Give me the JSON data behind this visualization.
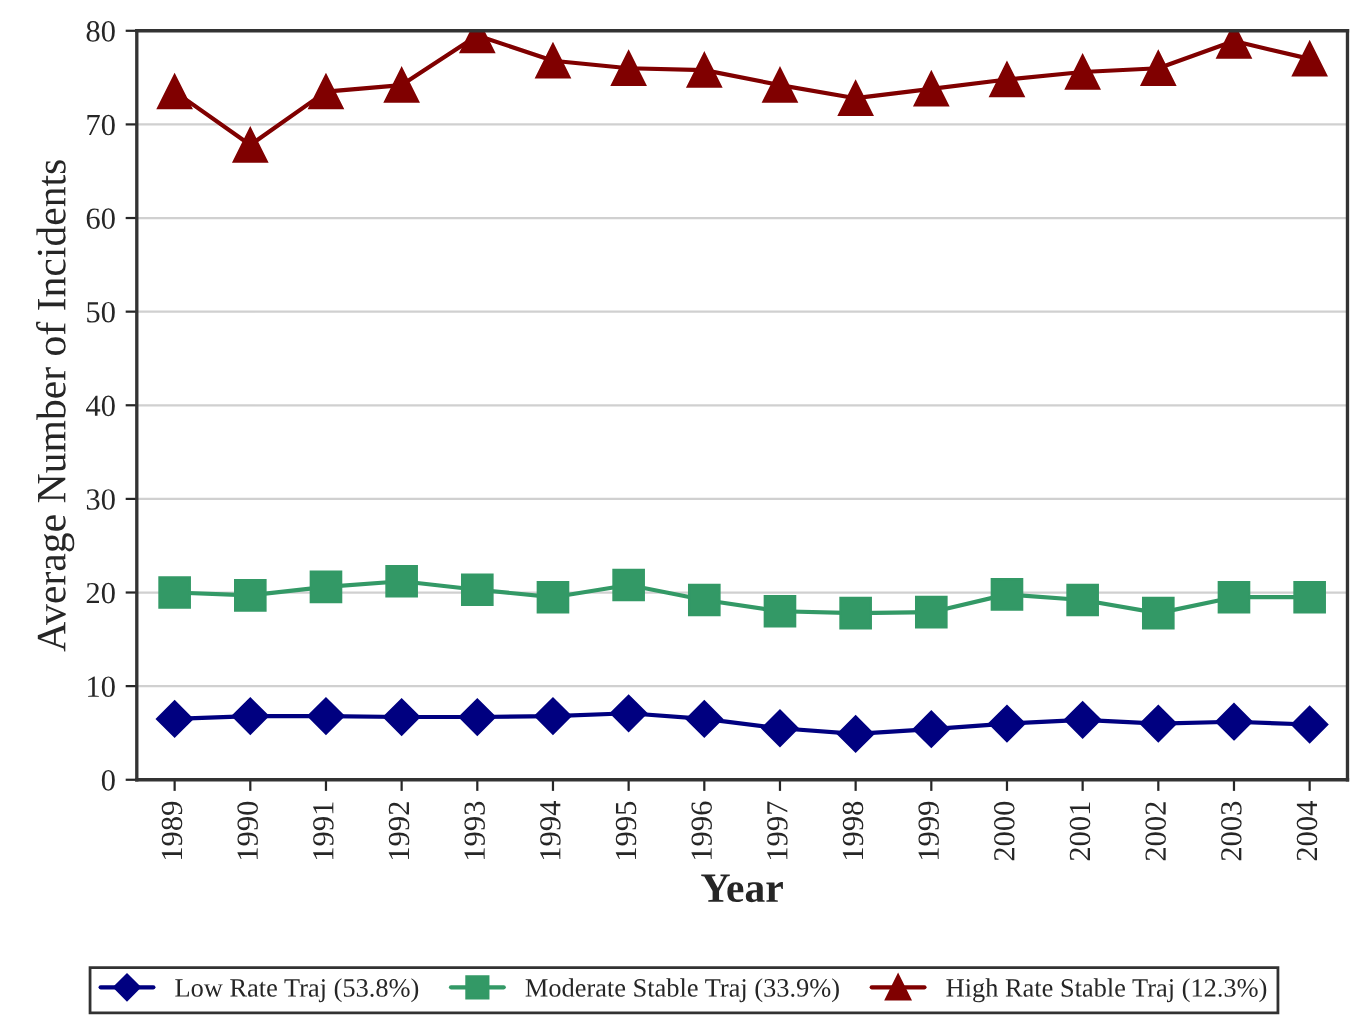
{
  "chart_data": {
    "type": "line",
    "xlabel": "Year",
    "ylabel": "Average Number of Incidents",
    "categories": [
      "1989",
      "1990",
      "1991",
      "1992",
      "1993",
      "1994",
      "1995",
      "1996",
      "1997",
      "1998",
      "1999",
      "2000",
      "2001",
      "2002",
      "2003",
      "2004"
    ],
    "series": [
      {
        "name": "Low Rate Traj (53.8%)",
        "color": "#000080",
        "marker": "diamond",
        "values": [
          6.5,
          6.8,
          6.8,
          6.7,
          6.7,
          6.8,
          7.1,
          6.5,
          5.5,
          4.9,
          5.4,
          6.0,
          6.4,
          6.0,
          6.2,
          5.9
        ]
      },
      {
        "name": "Moderate Stable Traj (33.9%)",
        "color": "#339966",
        "marker": "square",
        "values": [
          20.0,
          19.7,
          20.6,
          21.2,
          20.3,
          19.5,
          20.8,
          19.2,
          18.0,
          17.8,
          17.9,
          19.8,
          19.2,
          17.8,
          19.5,
          19.5
        ]
      },
      {
        "name": "High Rate Stable Traj (12.3%)",
        "color": "#800000",
        "marker": "triangle",
        "values": [
          73.5,
          67.8,
          73.5,
          74.2,
          79.5,
          76.8,
          76.0,
          75.8,
          74.2,
          72.8,
          73.8,
          74.8,
          75.6,
          76.0,
          78.9,
          77.0
        ]
      }
    ],
    "ylim": [
      0,
      80
    ],
    "yticks": [
      0,
      10,
      20,
      30,
      40,
      50,
      60,
      70,
      80
    ],
    "grid": "y",
    "legend": "bottom"
  }
}
